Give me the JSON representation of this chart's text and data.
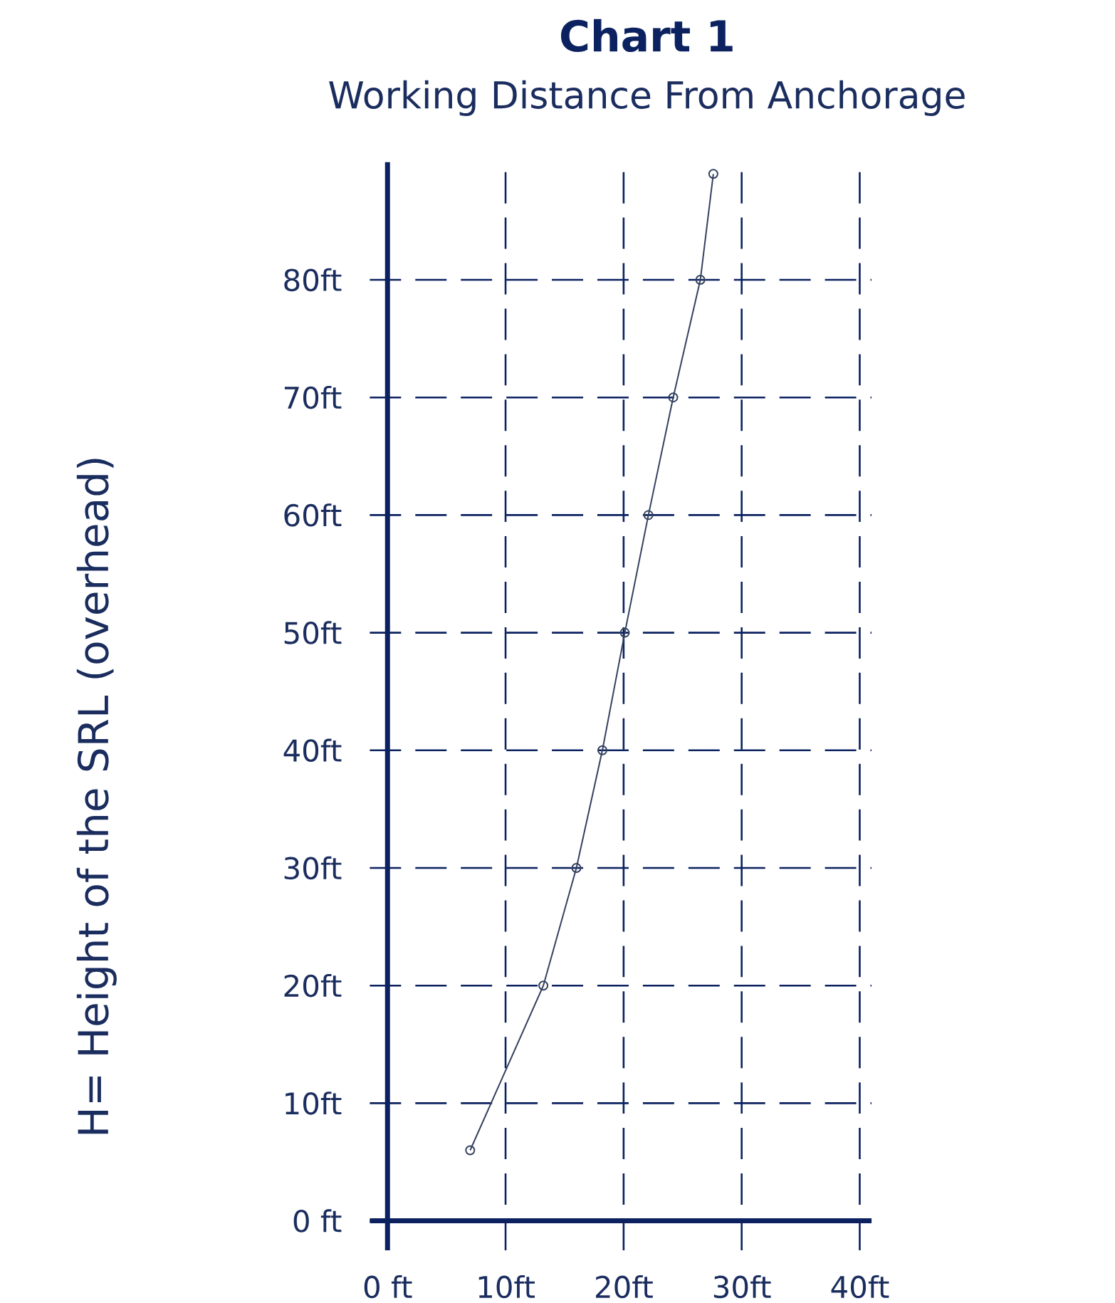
{
  "chart_data": {
    "type": "line",
    "title": "Chart 1",
    "subtitle": "Working Distance From Anchorage",
    "ylabel": "H= Height of the SRL (overhead)",
    "x": [
      7,
      13.2,
      16,
      18.2,
      20.1,
      22.1,
      24.2,
      26.5,
      27.6
    ],
    "values": [
      6,
      20,
      30,
      40,
      50,
      60,
      70,
      80,
      89
    ],
    "color": "#34425f",
    "marker": "circle",
    "grid": true,
    "xlim": [
      -1.5,
      41
    ],
    "ylim": [
      -2.5,
      90
    ],
    "xticks": [
      {
        "value": 0,
        "label": "0 ft"
      },
      {
        "value": 10,
        "label": "10ft"
      },
      {
        "value": 20,
        "label": "20ft"
      },
      {
        "value": 30,
        "label": "30ft"
      },
      {
        "value": 40,
        "label": "40ft"
      }
    ],
    "yticks": [
      {
        "value": 0,
        "label": "0 ft"
      },
      {
        "value": 10,
        "label": "10ft"
      },
      {
        "value": 20,
        "label": "20ft"
      },
      {
        "value": 30,
        "label": "30ft"
      },
      {
        "value": 40,
        "label": "40ft"
      },
      {
        "value": 50,
        "label": "50ft"
      },
      {
        "value": 60,
        "label": "60ft"
      },
      {
        "value": 70,
        "label": "70ft"
      },
      {
        "value": 80,
        "label": "80ft"
      }
    ]
  }
}
